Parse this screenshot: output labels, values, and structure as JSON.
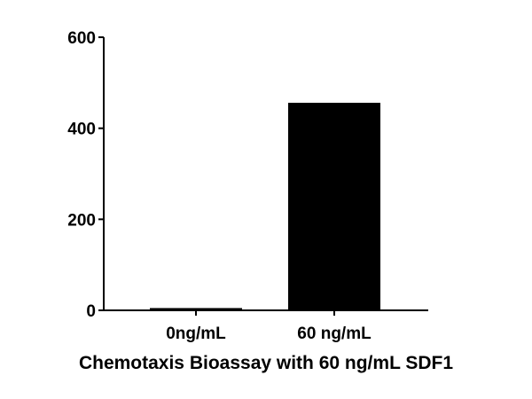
{
  "chart_data": {
    "type": "bar",
    "title": "Chemotaxis Bioassay with 60 ng/mL SDF1",
    "xlabel": "",
    "ylabel": "",
    "categories": [
      "0ng/mL",
      "60 ng/mL"
    ],
    "values": [
      5,
      456
    ],
    "ylim": [
      0,
      600
    ],
    "yticks": [
      0,
      200,
      400,
      600
    ],
    "grid": false,
    "legend": null,
    "bar_color": "#000000"
  }
}
